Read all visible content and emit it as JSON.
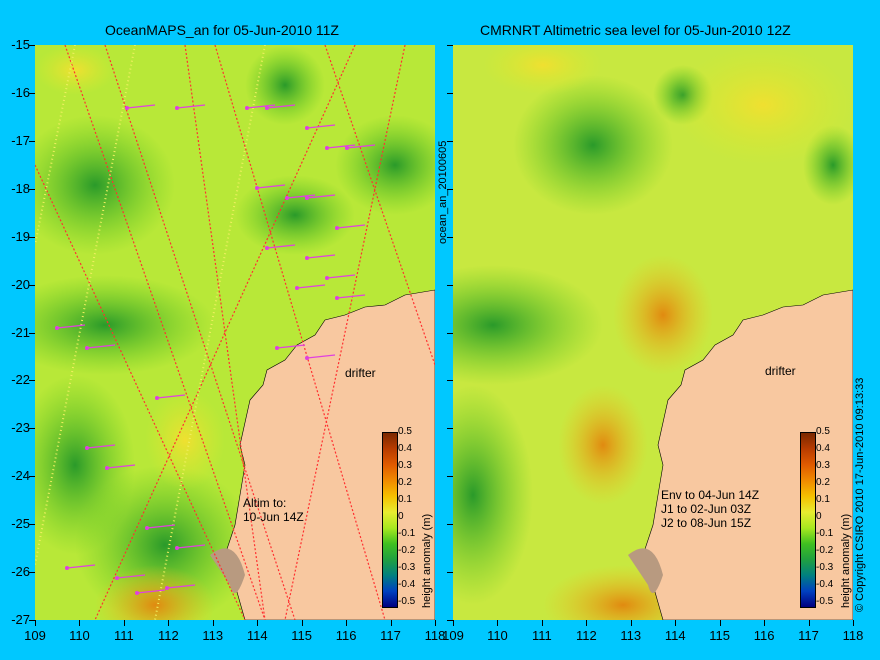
{
  "left_panel": {
    "title": "OceanMAPS_an for 05-Jun-2010 11Z",
    "annotation_lines": [
      "Altim to:",
      "10-Jun 14Z"
    ],
    "drifter_label": "drifter"
  },
  "right_panel": {
    "title": "CMRNRT Altimetric sea level  for 05-Jun-2010 12Z",
    "annotation_lines": [
      "Env to 04-Jun 14Z",
      "J1 to 02-Jun 03Z",
      "J2 to 08-Jun 15Z"
    ],
    "drifter_label": "drifter"
  },
  "side_label": "ocean_an_20100605",
  "copyright": "© Copyright CSIRO 2010   17-Jun-2010 09:13:33",
  "colorbar": {
    "label": "height anomaly (m)",
    "ticks": [
      "0.5",
      "0.4",
      "0.3",
      "0.2",
      "0.1",
      "0",
      "-0.1",
      "-0.2",
      "-0.3",
      "-0.4",
      "-0.5"
    ],
    "colors": [
      "#7a2800",
      "#b83c00",
      "#e05a00",
      "#f08a00",
      "#f5c000",
      "#e8ec30",
      "#a8e820",
      "#40c020",
      "#20a040",
      "#008080",
      "#0040c0",
      "#000080"
    ]
  },
  "y_ticks": [
    "-15",
    "-16",
    "-17",
    "-18",
    "-19",
    "-20",
    "-21",
    "-22",
    "-23",
    "-24",
    "-25",
    "-26",
    "-27"
  ],
  "x_ticks": [
    "109",
    "110",
    "111",
    "112",
    "113",
    "114",
    "115",
    "116",
    "117",
    "118"
  ],
  "colors": {
    "background": "#00c8ff",
    "land": "#f8c8a0",
    "arrow": "#e040e0",
    "contour": "#40e0e0"
  }
}
